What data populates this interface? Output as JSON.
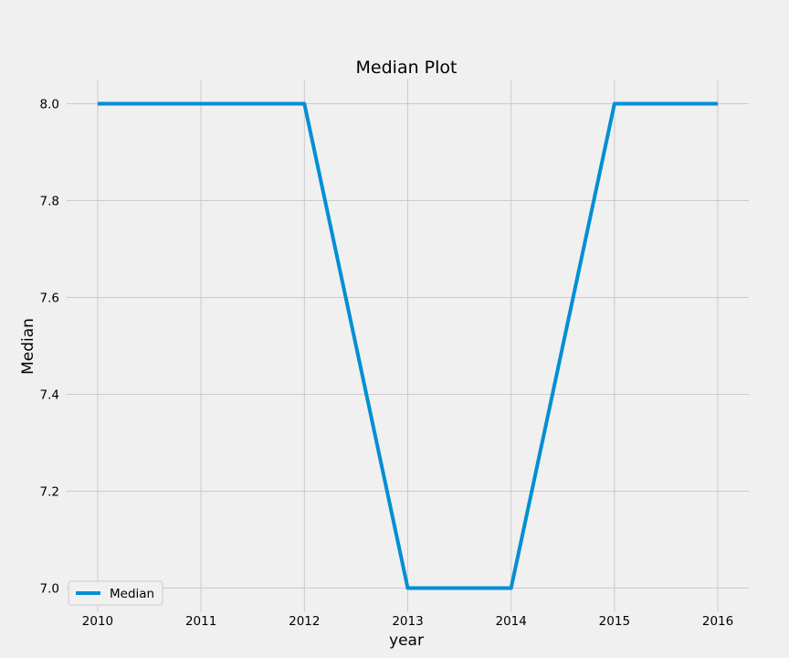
{
  "chart_data": {
    "type": "line",
    "title": "Median Plot",
    "xlabel": "year",
    "ylabel": "Median",
    "x": [
      2010,
      2011,
      2012,
      2013,
      2014,
      2015,
      2016
    ],
    "series": [
      {
        "name": "Median",
        "values": [
          8.0,
          8.0,
          8.0,
          7.0,
          7.0,
          8.0,
          8.0
        ],
        "color": "#008fd5"
      }
    ],
    "x_ticks": [
      "2010",
      "2011",
      "2012",
      "2013",
      "2014",
      "2015",
      "2016"
    ],
    "y_ticks": [
      "7.0",
      "7.2",
      "7.4",
      "7.6",
      "7.8",
      "8.0"
    ],
    "xlim": [
      2009.7,
      2016.3
    ],
    "ylim": [
      6.95,
      8.05
    ],
    "grid": true,
    "legend_position": "lower-left",
    "background_color": "#f0f0f0",
    "grid_color": "#cbcbcb"
  }
}
